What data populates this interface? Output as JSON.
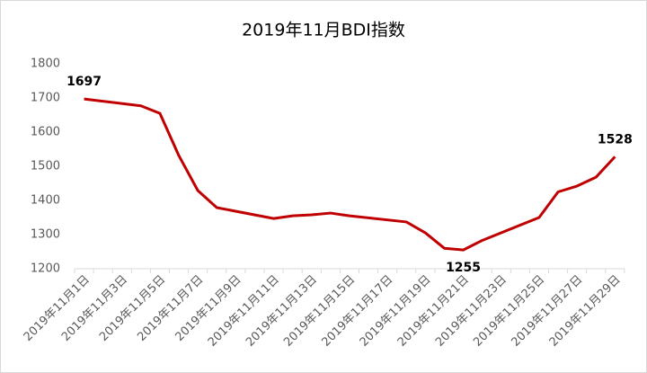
{
  "chart_data": {
    "type": "line",
    "title": "2019年11月BDI指数",
    "x": [
      "2019年11月1日",
      "2019年11月4日",
      "2019年11月5日",
      "2019年11月6日",
      "2019年11月7日",
      "2019年11月8日",
      "2019年11月11日",
      "2019年11月12日",
      "2019年11月13日",
      "2019年11月14日",
      "2019年11月15日",
      "2019年11月18日",
      "2019年11月19日",
      "2019年11月20日",
      "2019年11月21日",
      "2019年11月22日",
      "2019年11月25日",
      "2019年11月26日",
      "2019年11月27日",
      "2019年11月28日",
      "2019年11月29日"
    ],
    "series": [
      {
        "name": "BDI",
        "color": "#c00000",
        "values": [
          1697,
          1677,
          1655,
          1531,
          1429,
          1379,
          1347,
          1355,
          1358,
          1363,
          1355,
          1337,
          1305,
          1260,
          1255,
          1283,
          1350,
          1425,
          1442,
          1468,
          1528
        ],
        "show_value_label": [
          true,
          false,
          false,
          false,
          false,
          false,
          false,
          false,
          false,
          false,
          false,
          false,
          false,
          false,
          true,
          false,
          false,
          false,
          false,
          false,
          true
        ]
      }
    ],
    "xticks": [
      "2019年11月1日",
      "2019年11月3日",
      "2019年11月5日",
      "2019年11月7日",
      "2019年11月9日",
      "2019年11月11日",
      "2019年11月13日",
      "2019年11月15日",
      "2019年11月17日",
      "2019年11月19日",
      "2019年11月21日",
      "2019年11月23日",
      "2019年11月25日",
      "2019年11月27日",
      "2019年11月29日"
    ],
    "ylim": [
      1200,
      1800
    ],
    "yticks": [
      1200,
      1300,
      1400,
      1500,
      1600,
      1700,
      1800
    ],
    "grid": false
  }
}
